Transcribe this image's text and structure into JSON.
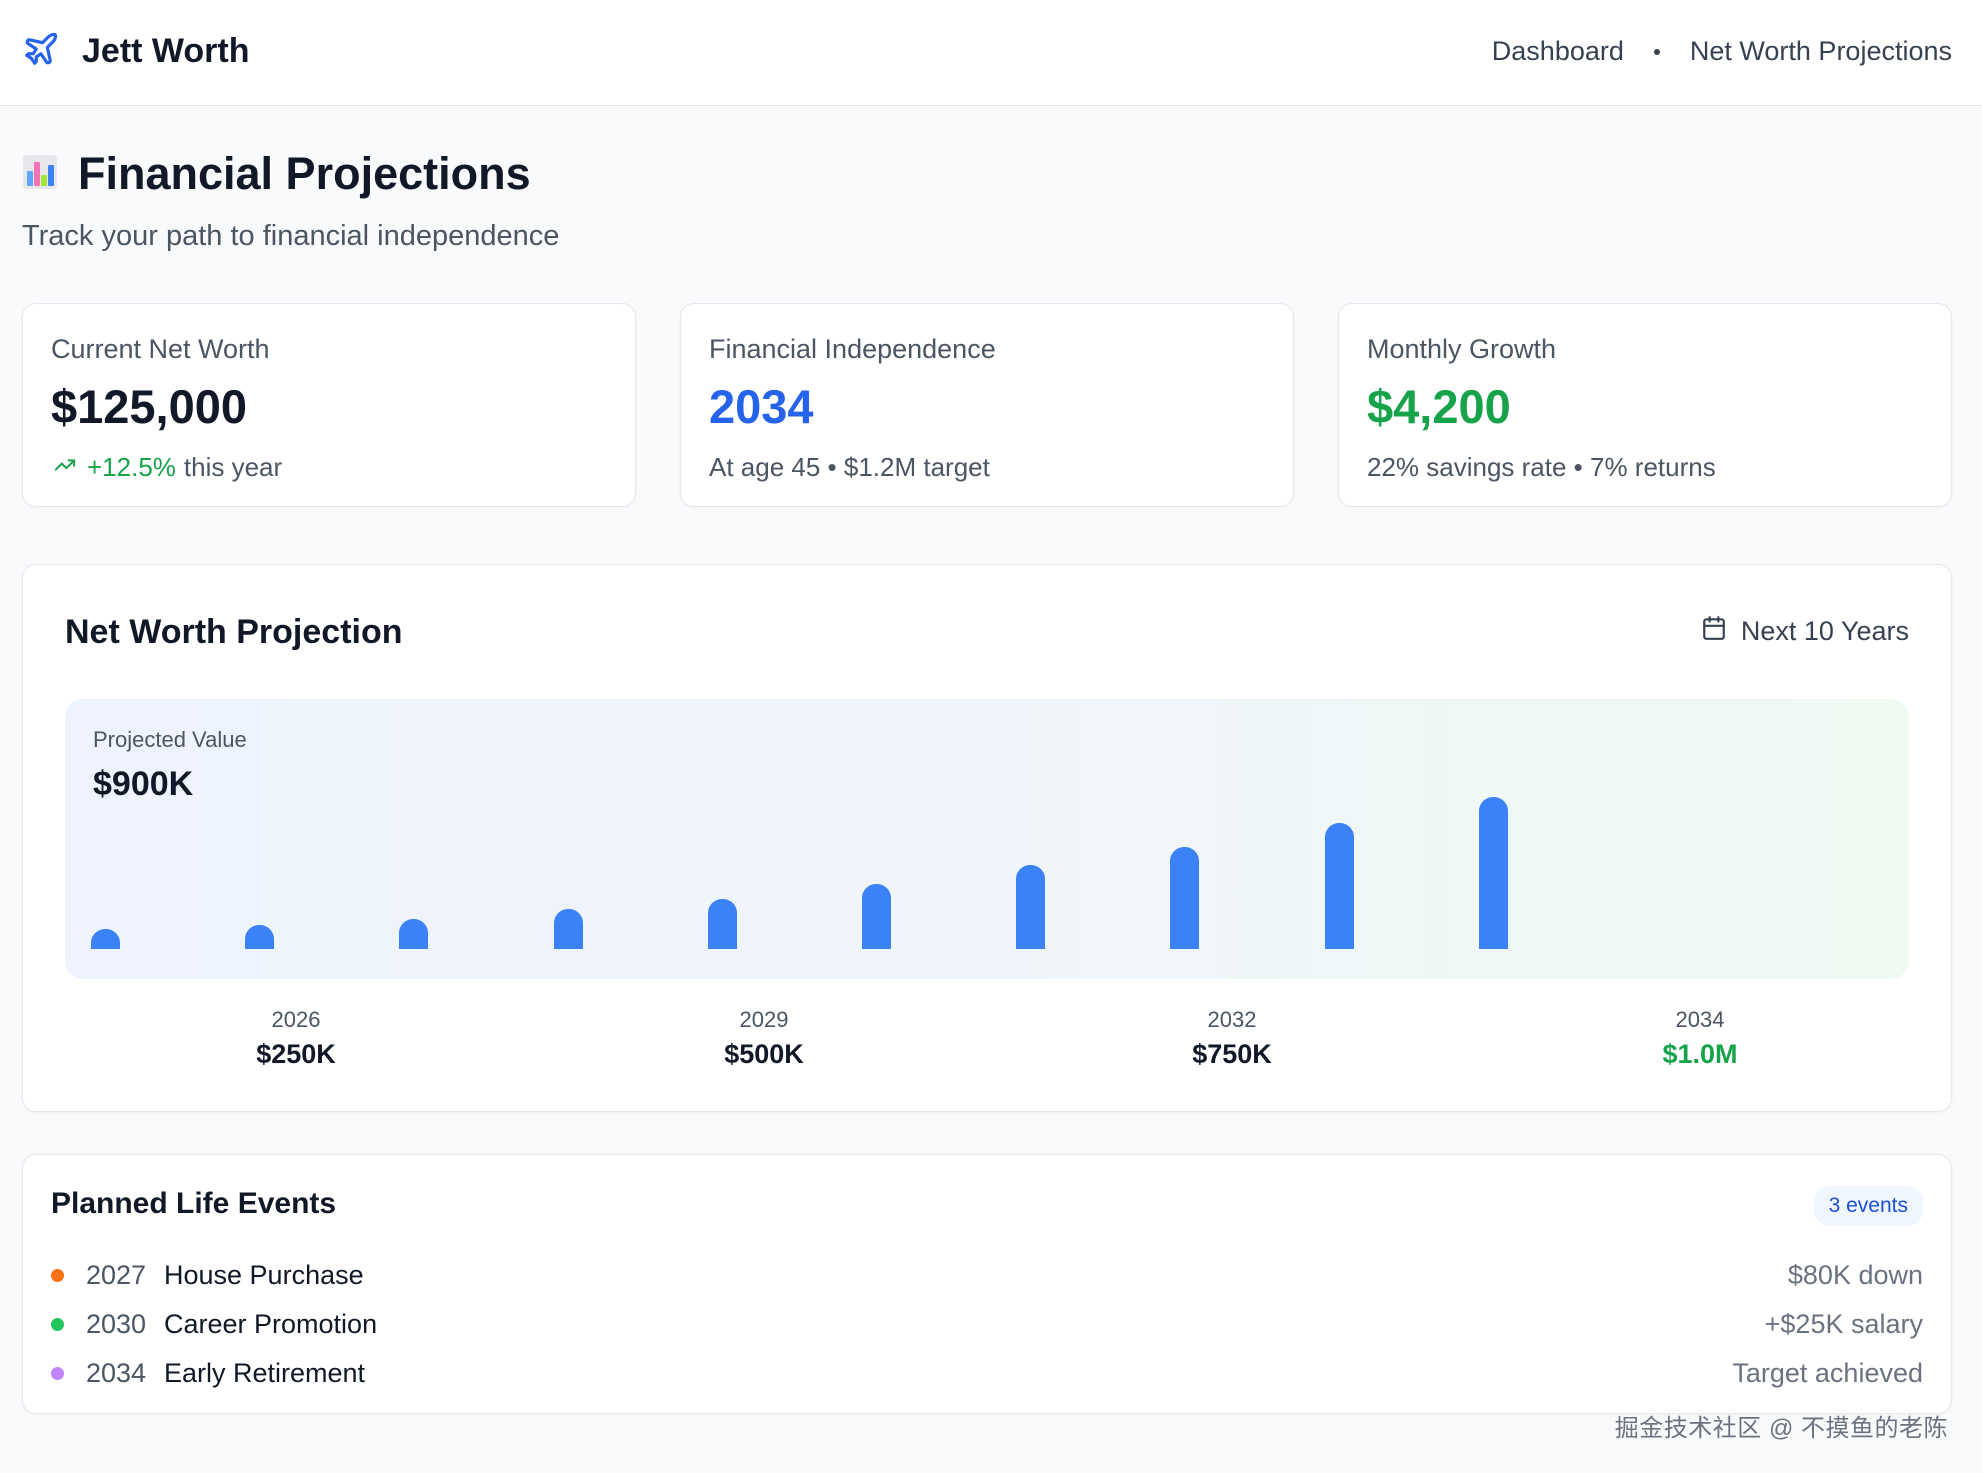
{
  "app": {
    "name": "Jett Worth",
    "logo_icon": "plane-icon"
  },
  "nav": {
    "items": [
      "Dashboard",
      "Net Worth Projections"
    ]
  },
  "header": {
    "icon": "bar-chart-icon",
    "title": "Financial Projections",
    "subtitle": "Track your path to financial independence"
  },
  "stats": [
    {
      "label": "Current Net Worth",
      "value": "$125,000",
      "trend_icon": "trending-up-icon",
      "note_highlight": "+12.5%",
      "note_rest": "this year",
      "value_color": "#111827"
    },
    {
      "label": "Financial Independence",
      "value": "2034",
      "note": "At age 45 • $1.2M target",
      "value_color": "#2563eb"
    },
    {
      "label": "Monthly Growth",
      "value": "$4,200",
      "note": "22% savings rate • 7% returns",
      "value_color": "#16a34a"
    }
  ],
  "projection": {
    "title": "Net Worth Projection",
    "range_icon": "calendar-icon",
    "range_label": "Next 10 Years",
    "value_label": "Projected Value",
    "value": "$900K",
    "x_labels": [
      {
        "year": "2026",
        "value": "$250K",
        "highlight": false
      },
      {
        "year": "2029",
        "value": "$500K",
        "highlight": false
      },
      {
        "year": "2032",
        "value": "$750K",
        "highlight": false
      },
      {
        "year": "2034",
        "value": "$1.0M",
        "highlight": true
      }
    ]
  },
  "chart_data": {
    "type": "bar",
    "series": [
      {
        "values": [
          0.13,
          0.16,
          0.2,
          0.26,
          0.33,
          0.43,
          0.55,
          0.67,
          0.83,
          1.0
        ]
      }
    ],
    "bar_color": "#3b82f6"
  },
  "events": {
    "title": "Planned Life Events",
    "badge": "3 events",
    "items": [
      {
        "year": "2027",
        "name": "House Purchase",
        "detail": "$80K down",
        "color": "#f97316"
      },
      {
        "year": "2030",
        "name": "Career Promotion",
        "detail": "+$25K salary",
        "color": "#22c55e"
      },
      {
        "year": "2034",
        "name": "Early Retirement",
        "detail": "Target achieved",
        "color": "#c084fc"
      }
    ]
  },
  "watermark": "掘金技术社区 @ 不摸鱼的老陈"
}
